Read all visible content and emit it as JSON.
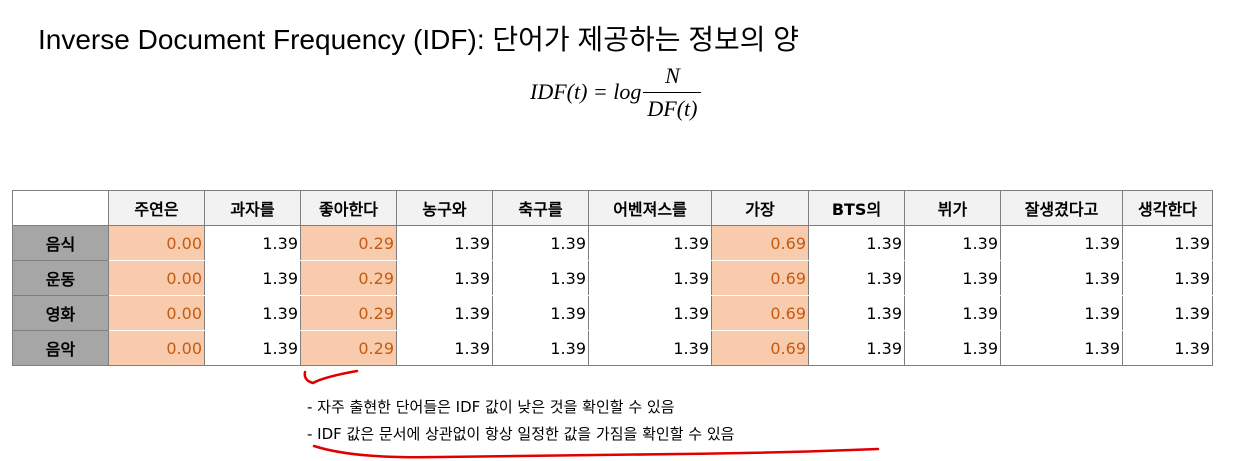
{
  "title": "Inverse Document Frequency (IDF): 단어가 제공하는 정보의 양",
  "formula": {
    "lhs": "IDF(t) = log",
    "numerator": "N",
    "denominator": "DF(t)"
  },
  "table": {
    "columns": [
      "주연은",
      "과자를",
      "좋아한다",
      "농구와",
      "축구를",
      "어벤져스를",
      "가장",
      "BTS의",
      "뷔가",
      "잘생겼다고",
      "생각한다"
    ],
    "rows": [
      {
        "label": "음식",
        "values": [
          "0.00",
          "1.39",
          "0.29",
          "1.39",
          "1.39",
          "1.39",
          "0.69",
          "1.39",
          "1.39",
          "1.39",
          "1.39"
        ]
      },
      {
        "label": "운동",
        "values": [
          "0.00",
          "1.39",
          "0.29",
          "1.39",
          "1.39",
          "1.39",
          "0.69",
          "1.39",
          "1.39",
          "1.39",
          "1.39"
        ]
      },
      {
        "label": "영화",
        "values": [
          "0.00",
          "1.39",
          "0.29",
          "1.39",
          "1.39",
          "1.39",
          "0.69",
          "1.39",
          "1.39",
          "1.39",
          "1.39"
        ]
      },
      {
        "label": "음악",
        "values": [
          "0.00",
          "1.39",
          "0.29",
          "1.39",
          "1.39",
          "1.39",
          "0.69",
          "1.39",
          "1.39",
          "1.39",
          "1.39"
        ]
      }
    ],
    "highlight_color": "#f8cbad",
    "highlight_text_color": "#c55a11"
  },
  "notes": [
    "- 자주 출현한 단어들은 IDF 값이 낮은 것을 확인할 수 있음",
    "- IDF 값은 문서에 상관없이 항상 일정한 값을 가짐을 확인할 수 있음"
  ],
  "annotation_color": "#e00000"
}
